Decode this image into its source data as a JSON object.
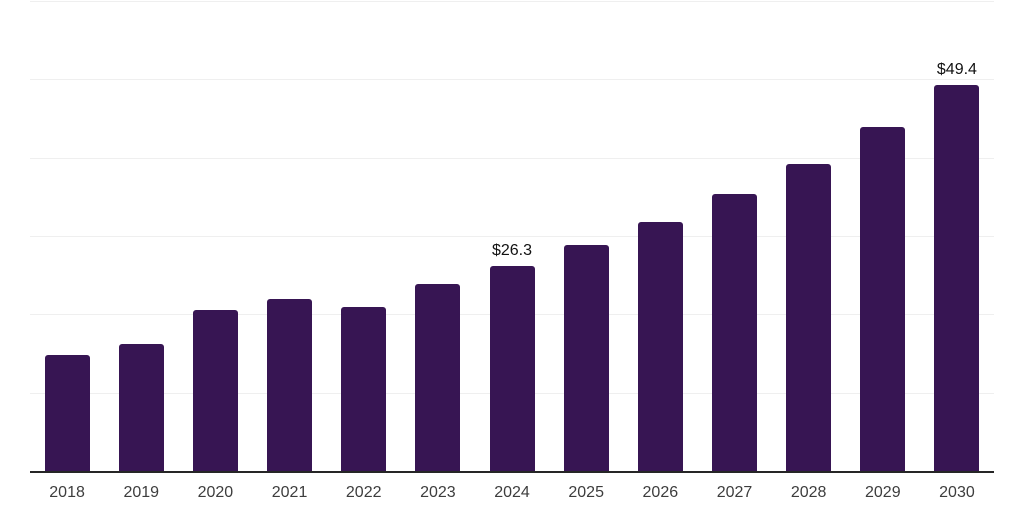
{
  "chart_data": {
    "type": "bar",
    "title": "",
    "xlabel": "",
    "ylabel": "",
    "categories": [
      "2018",
      "2019",
      "2020",
      "2021",
      "2022",
      "2023",
      "2024",
      "2025",
      "2026",
      "2027",
      "2028",
      "2029",
      "2030"
    ],
    "values": [
      15.0,
      16.3,
      20.7,
      22.1,
      21.1,
      24.0,
      26.3,
      29.0,
      31.9,
      35.5,
      39.3,
      44.0,
      49.4
    ],
    "bar_labels": [
      null,
      null,
      null,
      null,
      null,
      null,
      "$26.3",
      null,
      null,
      null,
      null,
      null,
      "$49.4"
    ],
    "ylim": [
      0,
      60
    ],
    "grid_step": 10,
    "grid": true,
    "legend": false,
    "y_tick_labels_visible": false,
    "colors": {
      "bar": "#371553",
      "axis": "#262626",
      "grid": "#efefef",
      "tick_text": "#3d3d3d",
      "data_label_text": "#111111",
      "background": "#ffffff"
    }
  }
}
